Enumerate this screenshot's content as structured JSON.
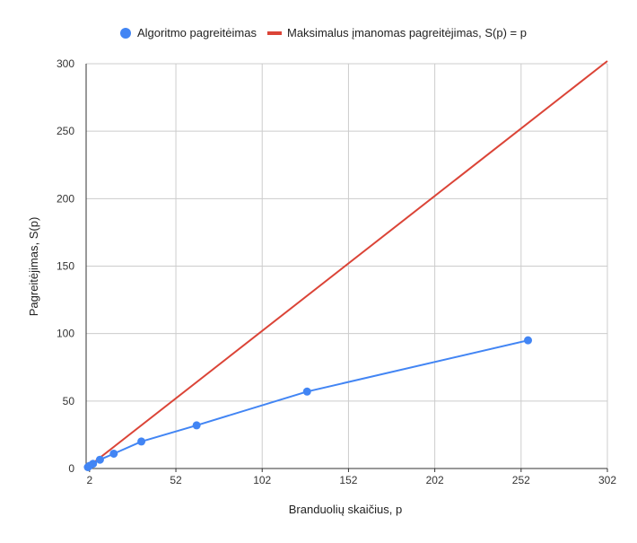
{
  "chart_data": {
    "type": "line",
    "xlabel": "Branduolių skaičius, p",
    "ylabel": "Pagreitėjimas, S(p)",
    "xlim": [
      0,
      302
    ],
    "ylim": [
      0,
      300
    ],
    "x_ticks": [
      2,
      52,
      102,
      152,
      202,
      252,
      302
    ],
    "y_ticks": [
      0,
      50,
      100,
      150,
      200,
      250,
      300
    ],
    "grid": true,
    "legend_position": "top",
    "series": [
      {
        "name": "Algoritmo pagreitėimas",
        "color": "#4285f4",
        "marker": "circle",
        "x": [
          1,
          2,
          4,
          8,
          16,
          32,
          64,
          128,
          256
        ],
        "y": [
          1,
          2,
          3.5,
          6.5,
          11,
          20,
          32,
          57,
          95
        ]
      },
      {
        "name": "Maksimalus įmanomas pagreitėjimas, S(p) = p",
        "color": "#db4437",
        "marker": "none",
        "x": [
          2,
          302
        ],
        "y": [
          2,
          302
        ]
      }
    ]
  }
}
